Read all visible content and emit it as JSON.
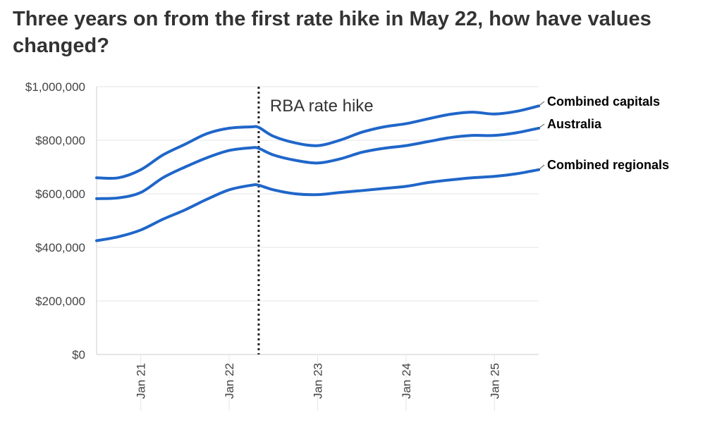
{
  "title": "Three years on from the first rate hike in May 22, how have values changed?",
  "annotation": "RBA rate hike",
  "colors": {
    "line": "#1f66c9",
    "grid": "#e6e6e6",
    "axis": "#cccccc"
  },
  "chart_data": {
    "type": "line",
    "title": "Three years on from the first rate hike in May 22, how have values changed?",
    "x_ticks": [
      "Jan 21",
      "Jan 22",
      "Jan 23",
      "Jan 24",
      "Jan 25"
    ],
    "y_ticks": [
      "$0",
      "$200,000",
      "$400,000",
      "$600,000",
      "$800,000",
      "$1,000,000"
    ],
    "ylim": [
      0,
      1000000
    ],
    "xlim": [
      "2020-07",
      "2025-07"
    ],
    "grid": true,
    "x": [
      "2020-07",
      "2020-10",
      "2021-01",
      "2021-04",
      "2021-07",
      "2021-10",
      "2022-01",
      "2022-04",
      "2022-05",
      "2022-07",
      "2022-10",
      "2023-01",
      "2023-04",
      "2023-07",
      "2023-10",
      "2024-01",
      "2024-04",
      "2024-07",
      "2024-10",
      "2025-01",
      "2025-04",
      "2025-07"
    ],
    "vline": {
      "x": "2022-05",
      "label": "RBA rate hike"
    },
    "series": [
      {
        "name": "Combined capitals",
        "values": [
          660000,
          660000,
          690000,
          745000,
          785000,
          825000,
          845000,
          850000,
          848000,
          815000,
          790000,
          780000,
          800000,
          830000,
          850000,
          862000,
          880000,
          897000,
          905000,
          898000,
          908000,
          928000
        ]
      },
      {
        "name": "Australia",
        "values": [
          582000,
          585000,
          605000,
          660000,
          700000,
          735000,
          762000,
          772000,
          770000,
          745000,
          725000,
          715000,
          730000,
          755000,
          770000,
          780000,
          795000,
          810000,
          818000,
          818000,
          828000,
          845000
        ]
      },
      {
        "name": "Combined regionals",
        "values": [
          425000,
          440000,
          465000,
          505000,
          540000,
          580000,
          615000,
          632000,
          632000,
          615000,
          600000,
          597000,
          605000,
          612000,
          620000,
          628000,
          642000,
          652000,
          660000,
          665000,
          675000,
          690000
        ]
      }
    ]
  }
}
